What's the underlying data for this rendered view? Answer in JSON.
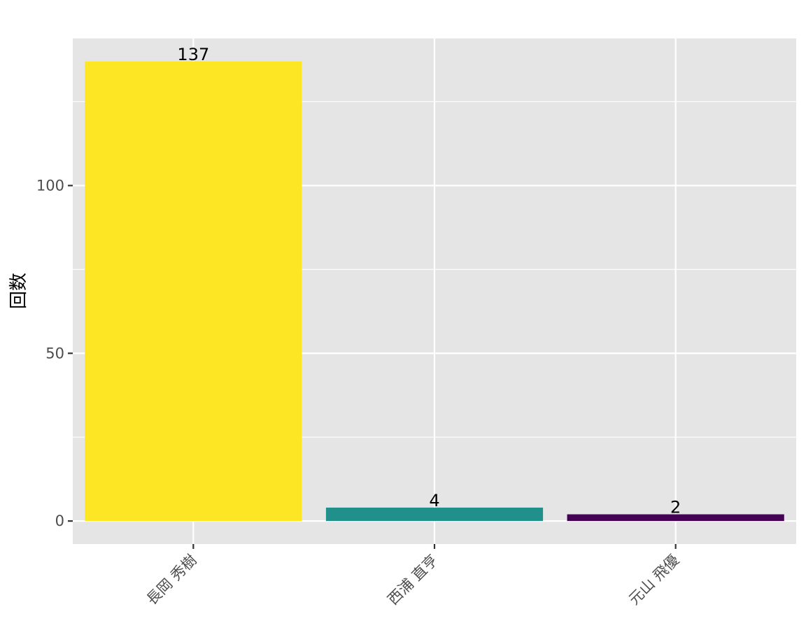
{
  "chart_data": {
    "type": "bar",
    "categories": [
      "長岡 秀樹",
      "西浦 直亨",
      "元山 飛優"
    ],
    "values": [
      137,
      4,
      2
    ],
    "data_labels": [
      "137",
      "4",
      "2"
    ],
    "bar_colors": [
      "#FDE725",
      "#21908C",
      "#440154"
    ],
    "xlabel": "",
    "ylabel": "回数",
    "ylim": [
      -6.85,
      143.85
    ],
    "yticks": [
      0,
      50,
      100
    ],
    "ytick_labels": [
      "0",
      "50",
      "100"
    ],
    "grid": true,
    "legend": "none",
    "panel_background": "#E5E5E5",
    "grid_color": "#FFFFFF",
    "x_label_rotation": -45
  }
}
